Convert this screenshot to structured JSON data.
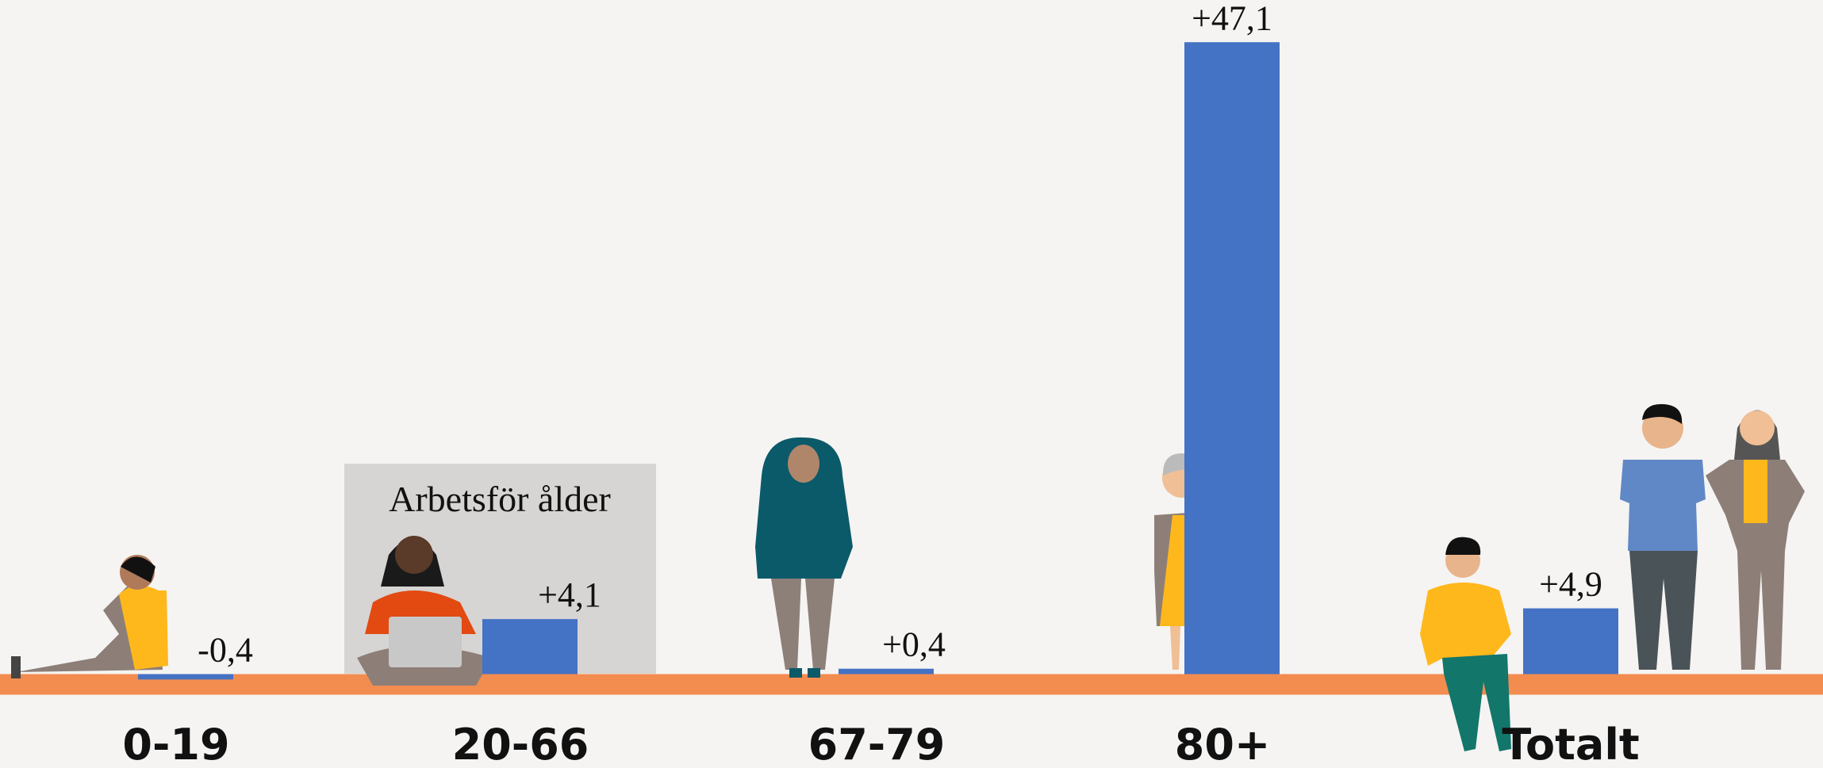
{
  "chart_data": {
    "type": "bar",
    "categories": [
      "0-19",
      "20-66",
      "67-79",
      "80+",
      "Totalt"
    ],
    "values": [
      -0.4,
      4.1,
      0.4,
      47.1,
      4.9
    ],
    "value_labels": [
      "-0,4",
      "+4,1",
      "+0,4",
      "+47,1",
      "+4,9"
    ],
    "color": "#4472c4",
    "baseline_color": "#f28c4f",
    "annotation": "Arbetsför ålder",
    "ylim": [
      -7,
      48
    ]
  }
}
